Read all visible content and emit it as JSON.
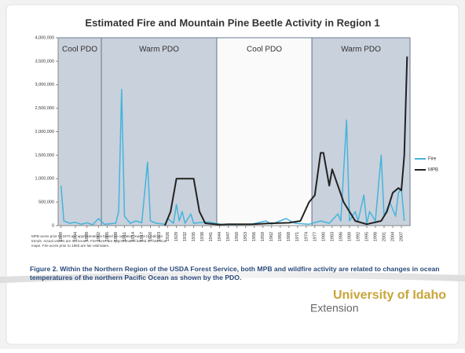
{
  "chart_data": {
    "type": "line",
    "title": "Estimated Fire and Mountain Pine Beetle Activity in Region 1",
    "regions": [
      {
        "label": "Cool PDO",
        "start": 1888,
        "end": 1903
      },
      {
        "label": "Warm PDO",
        "start": 1903,
        "end": 1943
      },
      {
        "label": "Cool PDO",
        "start": 1943,
        "end": 1976
      },
      {
        "label": "Warm PDO",
        "start": 1976,
        "end": 2010
      }
    ],
    "region_color": "#c9d1dc",
    "xlim": [
      1888,
      2010
    ],
    "xticks": [
      1889,
      1894,
      1898,
      1902,
      1905,
      1908,
      1911,
      1914,
      1917,
      1920,
      1923,
      1926,
      1929,
      1932,
      1935,
      1938,
      1941,
      1944,
      1947,
      1950,
      1953,
      1956,
      1959,
      1962,
      1965,
      1968,
      1971,
      1974,
      1977,
      1980,
      1983,
      1986,
      1989,
      1992,
      1995,
      1998,
      2001,
      2004,
      2007
    ],
    "ylim": [
      0,
      4000000
    ],
    "yticks": [
      0,
      {
        "value": 500000,
        "label": "500,000"
      },
      {
        "value": 1000000,
        "label": "1,000,000"
      },
      {
        "value": 1500000,
        "label": "1,500,000"
      },
      {
        "value": 2000000,
        "label": "2,000,000"
      },
      {
        "value": 2500000,
        "label": "2,500,000"
      },
      {
        "value": 3000000,
        "label": "3,000,000"
      },
      {
        "value": 3500000,
        "label": "3,500,000"
      },
      {
        "value": 4000000,
        "label": "4,000,000"
      }
    ],
    "legend": "right",
    "series": [
      {
        "name": "Fire",
        "color": "#45b4dc",
        "x": [
          1889,
          1890,
          1892,
          1894,
          1896,
          1898,
          1900,
          1902,
          1904,
          1908,
          1909,
          1910,
          1911,
          1913,
          1915,
          1917,
          1919,
          1920,
          1922,
          1925,
          1926,
          1928,
          1929,
          1930,
          1931,
          1932,
          1934,
          1935,
          1940,
          1945,
          1950,
          1955,
          1960,
          1962,
          1967,
          1970,
          1975,
          1979,
          1982,
          1985,
          1986,
          1988,
          1989,
          1991,
          1992,
          1994,
          1995,
          1996,
          1998,
          2000,
          2001,
          2003,
          2005,
          2006,
          2007,
          2008
        ],
        "values": [
          850000,
          100000,
          50000,
          70000,
          30000,
          60000,
          20000,
          150000,
          30000,
          50000,
          300000,
          2900000,
          200000,
          50000,
          100000,
          60000,
          1350000,
          100000,
          50000,
          30000,
          150000,
          50000,
          450000,
          100000,
          300000,
          50000,
          250000,
          50000,
          80000,
          20000,
          20000,
          30000,
          100000,
          30000,
          150000,
          50000,
          30000,
          100000,
          50000,
          250000,
          100000,
          2250000,
          100000,
          300000,
          100000,
          650000,
          50000,
          300000,
          100000,
          1500000,
          200000,
          500000,
          200000,
          700000,
          800000,
          100000
        ]
      },
      {
        "name": "MPB",
        "color": "#222222",
        "x": [
          1925,
          1927,
          1929,
          1932,
          1935,
          1937,
          1939,
          1944,
          1947,
          1955,
          1962,
          1968,
          1972,
          1975,
          1977,
          1979,
          1980,
          1982,
          1983,
          1985,
          1987,
          1989,
          1991,
          1995,
          2000,
          2002,
          2004,
          2006,
          2007,
          2008,
          2009
        ],
        "values": [
          0,
          300000,
          1000000,
          1000000,
          1000000,
          300000,
          50000,
          20000,
          30000,
          30000,
          50000,
          60000,
          100000,
          500000,
          650000,
          1550000,
          1550000,
          850000,
          1200000,
          850000,
          500000,
          300000,
          100000,
          30000,
          100000,
          300000,
          700000,
          800000,
          750000,
          1500000,
          3600000
        ]
      }
    ]
  },
  "note": "MPB acres prior to 1970 are approximations based on narrative reports to indicate trends. Actual values are not known. Fire acres are approximated based on historical maps. Fire acres prior to 1960 are fair estimates.",
  "caption": "Figure 2. Within the Northern Region of the USDA Forest Service, both MPB and wildfire activity are related to changes in ocean temperatures of the northern Pacific Ocean as shown by the PDO.",
  "logo": {
    "name": "University of Idaho",
    "unit": "Extension"
  }
}
